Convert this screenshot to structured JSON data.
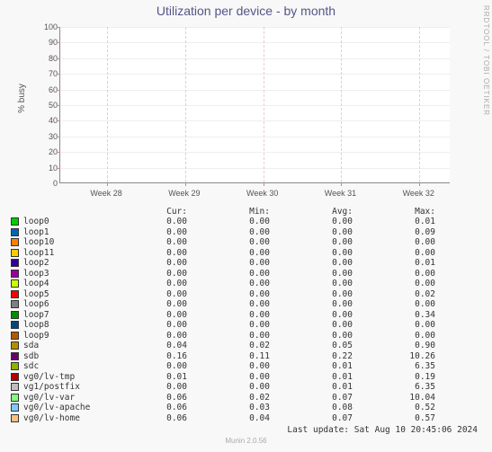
{
  "title": "Utilization per device - by month",
  "watermark": "RRDTOOL / TOBI OETIKER",
  "yaxis_label": "% busy",
  "background_color": "#f8f8f8",
  "plot_background": "#ffffff",
  "grid_color": "#eeeeee",
  "vgrid_color": "#e8cccc",
  "ylim": [
    0,
    100
  ],
  "yticks": [
    0,
    10,
    20,
    30,
    40,
    50,
    60,
    70,
    80,
    90,
    100
  ],
  "xticks": [
    "Week 28",
    "Week 29",
    "Week 30",
    "Week 31",
    "Week 32"
  ],
  "xtick_positions": [
    12,
    32,
    52,
    72,
    92
  ],
  "legend": {
    "headers": [
      "Cur:",
      "Min:",
      "Avg:",
      "Max:"
    ],
    "rows": [
      {
        "name": "loop0",
        "color": "#00cc00",
        "cur": "0.00",
        "min": "0.00",
        "avg": "0.00",
        "max": "0.01"
      },
      {
        "name": "loop1",
        "color": "#0066b3",
        "cur": "0.00",
        "min": "0.00",
        "avg": "0.00",
        "max": "0.09"
      },
      {
        "name": "loop10",
        "color": "#ff8000",
        "cur": "0.00",
        "min": "0.00",
        "avg": "0.00",
        "max": "0.00"
      },
      {
        "name": "loop11",
        "color": "#ffcc00",
        "cur": "0.00",
        "min": "0.00",
        "avg": "0.00",
        "max": "0.00"
      },
      {
        "name": "loop2",
        "color": "#330099",
        "cur": "0.00",
        "min": "0.00",
        "avg": "0.00",
        "max": "0.01"
      },
      {
        "name": "loop3",
        "color": "#990099",
        "cur": "0.00",
        "min": "0.00",
        "avg": "0.00",
        "max": "0.00"
      },
      {
        "name": "loop4",
        "color": "#ccff00",
        "cur": "0.00",
        "min": "0.00",
        "avg": "0.00",
        "max": "0.00"
      },
      {
        "name": "loop5",
        "color": "#ff0000",
        "cur": "0.00",
        "min": "0.00",
        "avg": "0.00",
        "max": "0.02"
      },
      {
        "name": "loop6",
        "color": "#808080",
        "cur": "0.00",
        "min": "0.00",
        "avg": "0.00",
        "max": "0.00"
      },
      {
        "name": "loop7",
        "color": "#008f00",
        "cur": "0.00",
        "min": "0.00",
        "avg": "0.00",
        "max": "0.34"
      },
      {
        "name": "loop8",
        "color": "#00487d",
        "cur": "0.00",
        "min": "0.00",
        "avg": "0.00",
        "max": "0.00"
      },
      {
        "name": "loop9",
        "color": "#b35a00",
        "cur": "0.00",
        "min": "0.00",
        "avg": "0.00",
        "max": "0.00"
      },
      {
        "name": "sda",
        "color": "#b38f00",
        "cur": "0.04",
        "min": "0.02",
        "avg": "0.05",
        "max": "0.90"
      },
      {
        "name": "sdb",
        "color": "#6b006b",
        "cur": "0.16",
        "min": "0.11",
        "avg": "0.22",
        "max": "10.26"
      },
      {
        "name": "sdc",
        "color": "#8fb300",
        "cur": "0.00",
        "min": "0.00",
        "avg": "0.01",
        "max": "6.35"
      },
      {
        "name": "vg0/lv-tmp",
        "color": "#b30000",
        "cur": "0.01",
        "min": "0.00",
        "avg": "0.01",
        "max": "0.19"
      },
      {
        "name": "vg1/postfix",
        "color": "#bebebe",
        "cur": "0.00",
        "min": "0.00",
        "avg": "0.01",
        "max": "6.35"
      },
      {
        "name": "vg0/lv-var",
        "color": "#80ff80",
        "cur": "0.06",
        "min": "0.02",
        "avg": "0.07",
        "max": "10.04"
      },
      {
        "name": "vg0/lv-apache",
        "color": "#80c9ff",
        "cur": "0.06",
        "min": "0.03",
        "avg": "0.08",
        "max": "0.52"
      },
      {
        "name": "vg0/lv-home",
        "color": "#ffc080",
        "cur": "0.06",
        "min": "0.04",
        "avg": "0.07",
        "max": "0.57"
      }
    ]
  },
  "last_update": "Last update: Sat Aug 10 20:45:06 2024",
  "footer": "Munin 2.0.56"
}
